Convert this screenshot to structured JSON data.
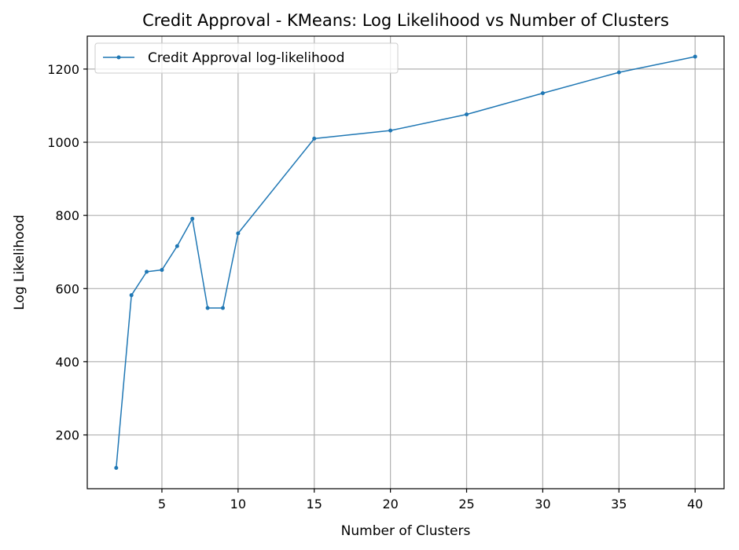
{
  "chart_data": {
    "type": "line",
    "title": "Credit Approval - KMeans: Log Likelihood vs Number of Clusters",
    "xlabel": "Number of Clusters",
    "ylabel": "Log Likelihood",
    "xlim": [
      0.1,
      41.9
    ],
    "ylim": [
      53,
      1290
    ],
    "xticks": [
      5,
      10,
      15,
      20,
      25,
      30,
      35,
      40
    ],
    "yticks": [
      200,
      400,
      600,
      800,
      1000,
      1200
    ],
    "xtick_labels": [
      "5",
      "10",
      "15",
      "20",
      "25",
      "30",
      "35",
      "40"
    ],
    "ytick_labels": [
      "200",
      "400",
      "600",
      "800",
      "1000",
      "1200"
    ],
    "grid": true,
    "legend_position": "top-left",
    "series": [
      {
        "name": "Credit Approval log-likelihood",
        "color": "#1f77b4",
        "marker": "dot",
        "x": [
          2,
          3,
          4,
          5,
          6,
          7,
          8,
          9,
          10,
          15,
          20,
          25,
          30,
          35,
          40
        ],
        "y": [
          110,
          582,
          646,
          651,
          716,
          791,
          547,
          547,
          751,
          1010,
          1032,
          1076,
          1134,
          1191,
          1234
        ]
      }
    ]
  }
}
